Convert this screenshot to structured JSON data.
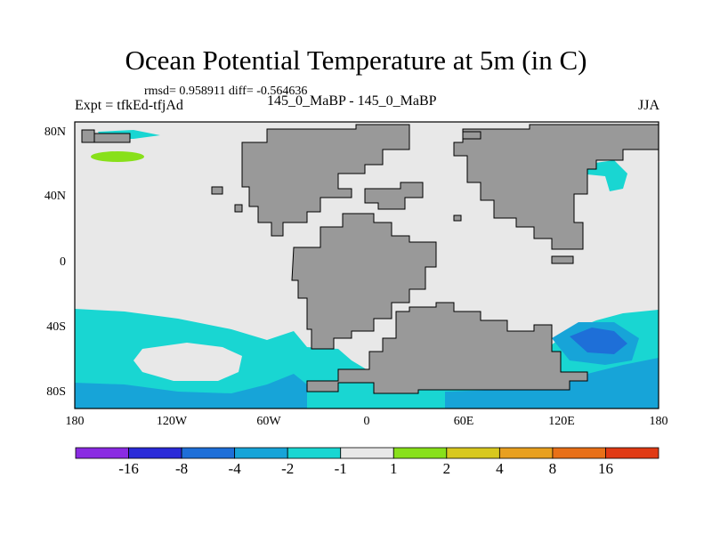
{
  "title": "Ocean Potential Temperature at 5m (in C)",
  "stats_text": "rmsd= 0.958911 diff= -0.564636",
  "experiment_label": "Expt = tfkEd-tfjAd",
  "subtitle": "145_0_MaBP - 145_0_MaBP",
  "season": "JJA",
  "lat_labels": [
    "80N",
    "40N",
    "0",
    "40S",
    "80S"
  ],
  "lon_labels": [
    "180",
    "120W",
    "60W",
    "0",
    "60E",
    "120E",
    "180"
  ],
  "colorbar": {
    "colors": [
      "#8a2be2",
      "#2b2bd8",
      "#1e6fd8",
      "#17a4d8",
      "#19d6d2",
      "#e8e8e8",
      "#88e01a",
      "#d8c81e",
      "#e8a020",
      "#e87018",
      "#e03a14"
    ],
    "labels": [
      "-16",
      "-8",
      "-4",
      "-2",
      "-1",
      "1",
      "2",
      "4",
      "8",
      "16"
    ]
  },
  "colors": {
    "land": "#999999",
    "ocean_neutral": "#e8e8e8",
    "cyan": "#19d6d2",
    "light_blue": "#17a4d8",
    "blue": "#1e6fd8",
    "green": "#88e01a"
  }
}
